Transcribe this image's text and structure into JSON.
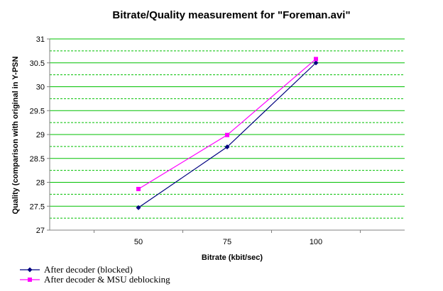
{
  "chart_data": {
    "type": "line",
    "title": "Bitrate/Quality measurement for \"Foreman.avi\"",
    "xlabel": "Bitrate (kbit/sec)",
    "ylabel": "Quality (comparison with original in Y-PSN",
    "x": [
      50,
      75,
      100
    ],
    "xlim": [
      25,
      125
    ],
    "ylim": [
      27,
      31
    ],
    "yticks": [
      27,
      27.5,
      28,
      28.5,
      29,
      29.5,
      30,
      30.5,
      31
    ],
    "ytick_labels": [
      "27",
      "27.5",
      "28",
      "28.5",
      "29",
      "29.5",
      "30",
      "30.5",
      "31"
    ],
    "xtick_labels": [
      "50",
      "75",
      "100"
    ],
    "grid": "horizontal, major solid green, minor dashed green",
    "legend_position": "bottom-left",
    "series": [
      {
        "name": "After decoder (blocked)",
        "values": [
          27.47,
          28.74,
          30.5
        ],
        "color": "#000080",
        "marker": "diamond"
      },
      {
        "name": "After decoder & MSU deblocking",
        "values": [
          27.86,
          28.99,
          30.58
        ],
        "color": "#ff00ff",
        "marker": "square"
      }
    ]
  },
  "colors": {
    "grid": "#00c000",
    "axis": "#808080"
  }
}
